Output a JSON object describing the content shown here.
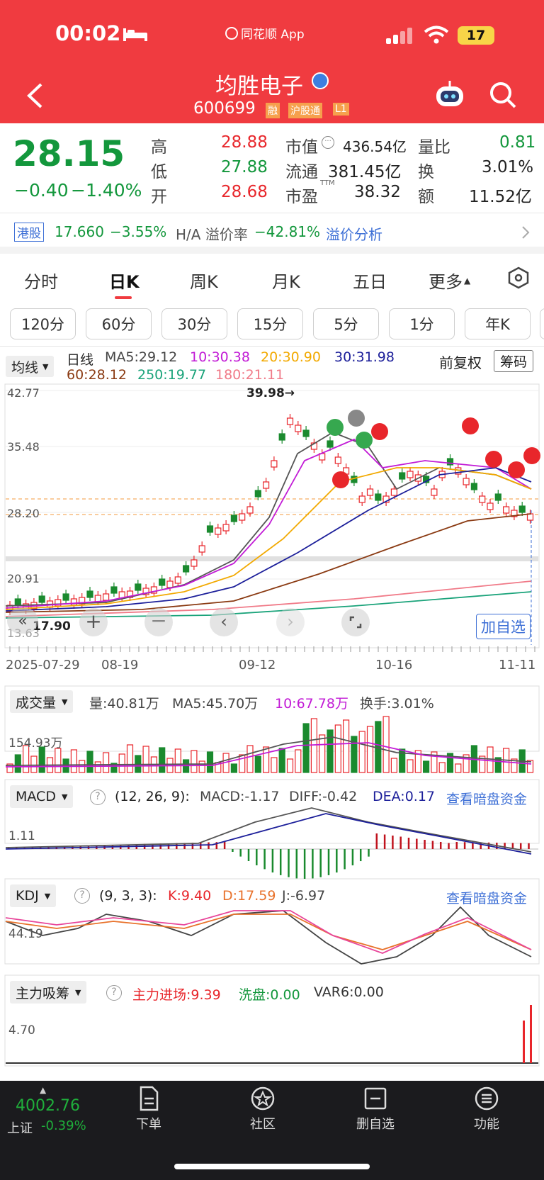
{
  "status": {
    "time": "00:02",
    "source": "同花顺 App",
    "battery": "17"
  },
  "header": {
    "name": "均胜电子",
    "code": "600699",
    "tags": [
      "融",
      "沪股通",
      "L1"
    ]
  },
  "quote": {
    "price": "28.15",
    "change": "−0.40",
    "pct": "−1.40%",
    "high_l": "高",
    "high": "28.88",
    "low_l": "低",
    "low": "27.88",
    "open_l": "开",
    "open": "28.68",
    "mcap_l": "市值",
    "mcap": "436.54亿",
    "float_l": "流通",
    "float": "381.45亿",
    "pe_l": "市盈",
    "pe_sup": "TTM",
    "pe": "38.32",
    "vr_l": "量比",
    "vr": "0.81",
    "turn_l": "换",
    "turn": "3.01%",
    "amt_l": "额",
    "amt": "11.52亿"
  },
  "hk": {
    "tag": "港股",
    "price": "17.660",
    "pct": "−3.55%",
    "prem_l": "H/A 溢价率",
    "prem": "−42.81%",
    "link": "溢价分析"
  },
  "tabs": [
    "分时",
    "日K",
    "周K",
    "月K",
    "五日",
    "更多"
  ],
  "active_tab": "日K",
  "periods": [
    "120分",
    "60分",
    "30分",
    "15分",
    "5分",
    "1分",
    "年K"
  ],
  "chart": {
    "ind": "均线",
    "line": "日线",
    "ma5": "MA5:29.12",
    "ma10": "10:30.38",
    "ma20": "20:30.90",
    "ma30": "30:31.98",
    "ma60": "60:28.12",
    "ma250": "250:19.77",
    "ma180": "180:21.11",
    "adj": "前复权",
    "chips": "筹码",
    "y1": "42.77",
    "y2": "35.48",
    "y3": "28.20",
    "y4": "20.91",
    "y5": "13.63",
    "max_label": "39.98→",
    "min_label": "17.90",
    "dates": [
      "2025-07-29",
      "08-19",
      "09-12",
      "10-16",
      "11-11"
    ],
    "add": "加自选",
    "colors": {
      "up": "#e8262b",
      "down": "#1a8a2e",
      "ma5": "#555555",
      "ma10": "#c21bd6",
      "ma20": "#f2a900",
      "ma30": "#1c1f9a",
      "ma60": "#8a3a12"
    }
  },
  "vol": {
    "ind": "成交量",
    "v": "量:40.81万",
    "ma5": "MA5:45.70万",
    "ma10": "10:67.78万",
    "turn": "换手:3.01%",
    "y": "154.93万"
  },
  "macd": {
    "ind": "MACD",
    "params": "(12, 26, 9):",
    "macd": "MACD:-1.17",
    "diff": "DIFF:-0.42",
    "dea": "DEA:0.17",
    "link": "查看暗盘资金",
    "y": "1.11"
  },
  "kdj": {
    "ind": "KDJ",
    "params": "(9, 3, 3):",
    "k": "K:9.40",
    "d": "D:17.59",
    "j": "J:-6.97",
    "link": "查看暗盘资金",
    "y": "44.19"
  },
  "zl": {
    "ind": "主力吸筹",
    "in": "主力进场:9.39",
    "wash": "洗盘:0.00",
    "var6": "VAR6:0.00",
    "y": "4.70"
  },
  "bottom": {
    "index_val": "4002.76",
    "index_name": "上证",
    "index_pct": "-0.39%",
    "nav": [
      "下单",
      "社区",
      "删自选",
      "功能"
    ]
  }
}
